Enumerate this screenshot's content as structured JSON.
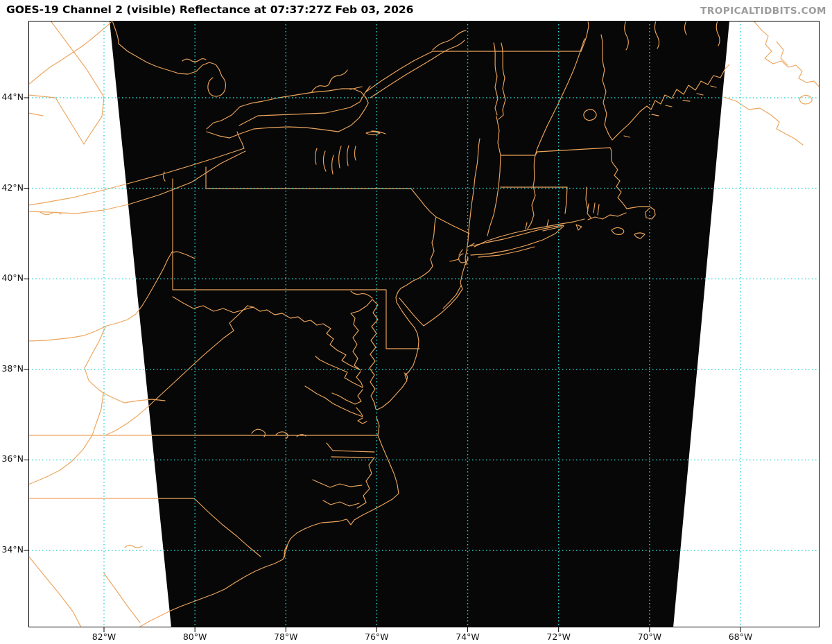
{
  "header": {
    "title": "GOES-19 Channel 2 (visible) Reflectance at 07:37:27Z Feb 03, 2026",
    "watermark": "TROPICALTIDBITS.COM"
  },
  "map": {
    "satellite": "GOES-19",
    "channel": "Channel 2 (visible)",
    "product": "Reflectance",
    "timestamp": "07:37:27Z Feb 03, 2026",
    "axes": {
      "lat_ticks": [
        {
          "label": "44°N",
          "lat": 44
        },
        {
          "label": "42°N",
          "lat": 42
        },
        {
          "label": "40°N",
          "lat": 40
        },
        {
          "label": "38°N",
          "lat": 38
        },
        {
          "label": "36°N",
          "lat": 36
        },
        {
          "label": "34°N",
          "lat": 34
        }
      ],
      "lon_ticks": [
        {
          "label": "82°W",
          "lon": 82
        },
        {
          "label": "80°W",
          "lon": 80
        },
        {
          "label": "78°W",
          "lon": 78
        },
        {
          "label": "76°W",
          "lon": 76
        },
        {
          "label": "74°W",
          "lon": 74
        },
        {
          "label": "72°W",
          "lon": 72
        },
        {
          "label": "70°W",
          "lon": 70
        },
        {
          "label": "68°W",
          "lon": 68
        }
      ]
    },
    "colors": {
      "map_lines": "#eda55c",
      "gridlines": "#2cd6d6",
      "scan_region_bg": "#070707",
      "page_bg": "#ffffff",
      "title_color": "#000000",
      "watermark_color": "#9b9b9b",
      "axis_text_color": "#111111"
    }
  }
}
